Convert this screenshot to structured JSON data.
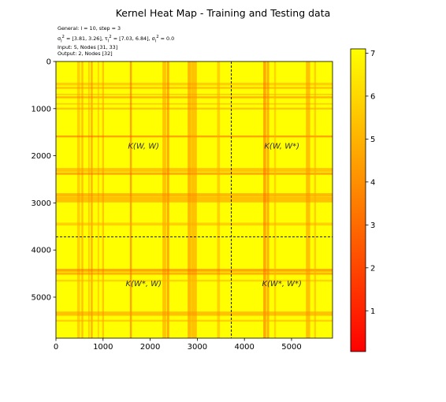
{
  "title": "Kernel Heat Map - Training and Testing data",
  "info": {
    "line1": "General: l = 10, step = 3",
    "line2_var": "σ",
    "line2_a": " = [3.81, 3.26], τ",
    "line2_b": " = [7.03, 6.84], σ",
    "line2_c": " = 0.0",
    "line3": "Input: 5, Nodes [31, 33]",
    "line4": "Output: 2, Nodes [32]"
  },
  "chart_data": {
    "type": "heatmap",
    "xlim": [
      0,
      5870
    ],
    "ylim": [
      5870,
      0
    ],
    "xticks": [
      0,
      1000,
      2000,
      3000,
      4000,
      5000
    ],
    "yticks": [
      0,
      1000,
      2000,
      3000,
      4000,
      5000
    ],
    "split_index": 3720,
    "colormap": "autumn",
    "colorbar": {
      "min": 0.05,
      "max": 7.1,
      "ticks": [
        1,
        2,
        3,
        4,
        5,
        6,
        7
      ]
    },
    "block_labels": [
      "K(W, W)",
      "K(W, W*)",
      "K(W*, W)",
      "K(W*, W*)"
    ],
    "low_value_bands": [
      {
        "center": 480,
        "width": 60,
        "value": 4.8
      },
      {
        "center": 560,
        "width": 40,
        "value": 4.0
      },
      {
        "center": 700,
        "width": 30,
        "value": 4.6
      },
      {
        "center": 760,
        "width": 40,
        "value": 3.4
      },
      {
        "center": 900,
        "width": 30,
        "value": 4.8
      },
      {
        "center": 1000,
        "width": 40,
        "value": 4.4
      },
      {
        "center": 1590,
        "width": 40,
        "value": 2.6
      },
      {
        "center": 2300,
        "width": 80,
        "value": 4.2
      },
      {
        "center": 2380,
        "width": 50,
        "value": 3.0
      },
      {
        "center": 2830,
        "width": 70,
        "value": 3.6
      },
      {
        "center": 2930,
        "width": 120,
        "value": 4.0
      },
      {
        "center": 3450,
        "width": 60,
        "value": 4.8
      },
      {
        "center": 4430,
        "width": 60,
        "value": 2.8
      },
      {
        "center": 4500,
        "width": 50,
        "value": 3.4
      },
      {
        "center": 4650,
        "width": 40,
        "value": 5.0
      },
      {
        "center": 5350,
        "width": 90,
        "value": 4.0
      },
      {
        "center": 5500,
        "width": 40,
        "value": 4.8
      }
    ]
  }
}
